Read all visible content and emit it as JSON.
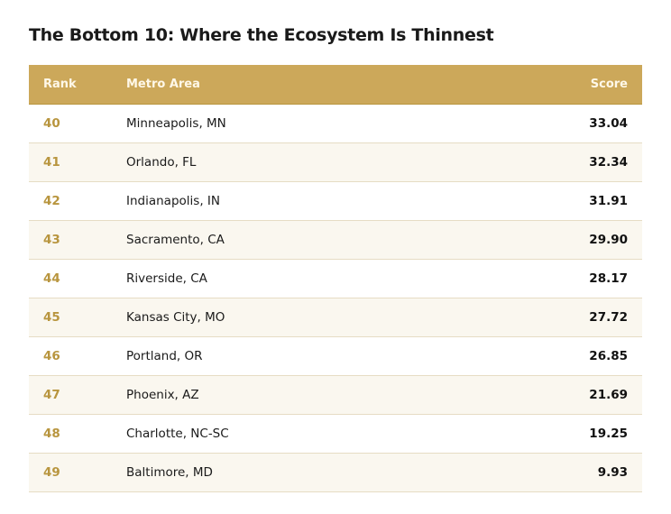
{
  "header": {
    "title": "The Bottom 10: Where the Ecosystem Is Thinnest"
  },
  "table": {
    "columns": [
      "Rank",
      "Metro Area",
      "Score"
    ],
    "rows": [
      [
        "40",
        "Minneapolis, MN",
        "33.04"
      ],
      [
        "41",
        "Orlando, FL",
        "32.34"
      ],
      [
        "42",
        "Indianapolis, IN",
        "31.91"
      ],
      [
        "43",
        "Sacramento, CA",
        "29.90"
      ],
      [
        "44",
        "Riverside, CA",
        "28.17"
      ],
      [
        "45",
        "Kansas City, MO",
        "27.72"
      ],
      [
        "46",
        "Portland, OR",
        "26.85"
      ],
      [
        "47",
        "Phoenix, AZ",
        "21.69"
      ],
      [
        "48",
        "Charlotte, NC-SC",
        "19.25"
      ],
      [
        "49",
        "Baltimore, MD",
        "9.93"
      ]
    ]
  }
}
